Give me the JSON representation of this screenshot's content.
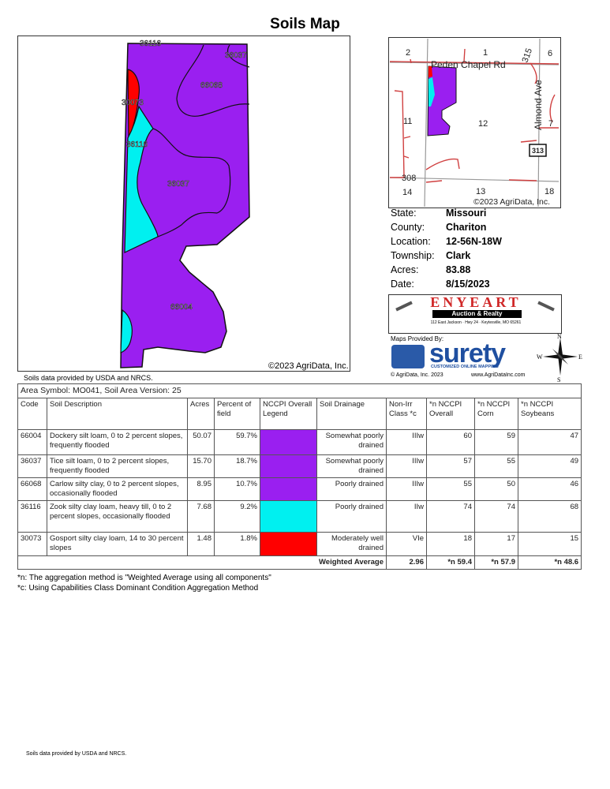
{
  "title": "Soils Map",
  "map": {
    "labels": [
      "36116",
      "36037",
      "66068",
      "30073",
      "36116",
      "36037",
      "66004"
    ],
    "copyright": "©2023 AgriData, Inc.",
    "source_note": "Soils data provided by USDA and NRCS."
  },
  "inset": {
    "sections": [
      "2",
      "1",
      "6",
      "11",
      "12",
      "7",
      "14",
      "13",
      "18"
    ],
    "roads": [
      "Peden Chapel Rd",
      "Almond Ave",
      "315",
      "313",
      "308"
    ],
    "copyright": "©2023 AgriData, Inc."
  },
  "info": [
    {
      "label": "State:",
      "value": "Missouri"
    },
    {
      "label": "County:",
      "value": "Chariton"
    },
    {
      "label": "Location:",
      "value": "12-56N-18W"
    },
    {
      "label": "Township:",
      "value": "Clark"
    },
    {
      "label": "Acres:",
      "value": "83.88"
    },
    {
      "label": "Date:",
      "value": "8/15/2023"
    }
  ],
  "logo": {
    "company": "ENYEART",
    "tagline": "Auction & Realty",
    "address": "112 East Jackson · Hwy 24 · Keytesville, MO 65261"
  },
  "surety": {
    "provided_by": "Maps Provided By:",
    "brand": "surety",
    "sub": "CUSTOMIZED ONLINE MAPPING",
    "copyright": "© AgriData, Inc. 2023",
    "url": "www.AgriDataInc.com"
  },
  "compass": {
    "n": "N",
    "s": "S",
    "e": "E",
    "w": "W"
  },
  "table": {
    "area_symbol": "Area Symbol: MO041, Soil Area Version: 25",
    "headers": [
      "Code",
      "Soil Description",
      "Acres",
      "Percent of field",
      "NCCPI Overall Legend",
      "Soil Drainage",
      "Non-Irr Class *c",
      "*n NCCPI Overall",
      "*n NCCPI Corn",
      "*n NCCPI Soybeans"
    ],
    "rows": [
      {
        "code": "66004",
        "desc": "Dockery silt loam, 0 to 2 percent slopes, frequently flooded",
        "acres": "50.07",
        "pct": "59.7%",
        "color": "#9a1ff0",
        "drainage": "Somewhat poorly drained",
        "class": "IIIw",
        "overall": "60",
        "corn": "59",
        "soy": "47"
      },
      {
        "code": "36037",
        "desc": "Tice silt loam, 0 to 2 percent slopes, frequently flooded",
        "acres": "15.70",
        "pct": "18.7%",
        "color": "#9a1ff0",
        "drainage": "Somewhat poorly drained",
        "class": "IIIw",
        "overall": "57",
        "corn": "55",
        "soy": "49"
      },
      {
        "code": "66068",
        "desc": "Carlow silty clay, 0 to 2 percent slopes, occasionally flooded",
        "acres": "8.95",
        "pct": "10.7%",
        "color": "#9a1ff0",
        "drainage": "Poorly drained",
        "class": "IIIw",
        "overall": "55",
        "corn": "50",
        "soy": "46"
      },
      {
        "code": "36116",
        "desc": "Zook silty clay loam, heavy till, 0 to 2 percent slopes, occasionally flooded",
        "acres": "7.68",
        "pct": "9.2%",
        "color": "#00f0f0",
        "drainage": "Poorly drained",
        "class": "IIw",
        "overall": "74",
        "corn": "74",
        "soy": "68"
      },
      {
        "code": "30073",
        "desc": "Gosport silty clay loam, 14 to 30 percent slopes",
        "acres": "1.48",
        "pct": "1.8%",
        "color": "#ff0000",
        "drainage": "Moderately well drained",
        "class": "VIe",
        "overall": "18",
        "corn": "17",
        "soy": "15"
      }
    ],
    "weighted": {
      "label": "Weighted Average",
      "class": "2.96",
      "overall": "*n 59.4",
      "corn": "*n 57.9",
      "soy": "*n 48.6"
    }
  },
  "footnotes": [
    "*n: The aggregation method is \"Weighted Average using all components\"",
    "*c:  Using Capabilities Class Dominant Condition Aggregation Method"
  ],
  "bottom_note": "Soils data provided by USDA and NRCS."
}
